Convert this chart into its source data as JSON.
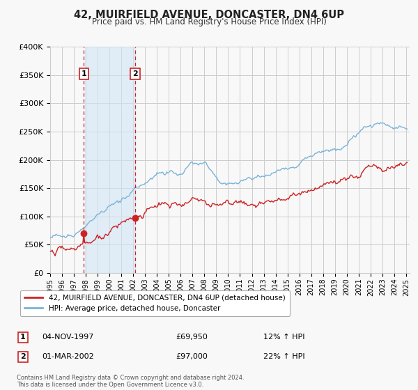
{
  "title": "42, MUIRFIELD AVENUE, DONCASTER, DN4 6UP",
  "subtitle": "Price paid vs. HM Land Registry's House Price Index (HPI)",
  "ylim": [
    0,
    400000
  ],
  "yticks": [
    0,
    50000,
    100000,
    150000,
    200000,
    250000,
    300000,
    350000,
    400000
  ],
  "ytick_labels": [
    "£0",
    "£50K",
    "£100K",
    "£150K",
    "£200K",
    "£250K",
    "£300K",
    "£350K",
    "£400K"
  ],
  "year_start": 1995,
  "year_end": 2025,
  "sale1_date": 1997.84,
  "sale1_price": 69950,
  "sale1_label": "1",
  "sale1_annotation": "04-NOV-1997",
  "sale1_amount": "£69,950",
  "sale1_hpi": "12% ↑ HPI",
  "sale2_date": 2002.17,
  "sale2_price": 97000,
  "sale2_label": "2",
  "sale2_annotation": "01-MAR-2002",
  "sale2_amount": "£97,000",
  "sale2_hpi": "22% ↑ HPI",
  "shade_color": "#d0e4f5",
  "shade_alpha": 0.6,
  "hpi_color": "#7ab3d8",
  "sale_color": "#cc2222",
  "vline_color": "#cc2222",
  "grid_color": "#cccccc",
  "background_color": "#f8f8f8",
  "legend_sale_label": "42, MUIRFIELD AVENUE, DONCASTER, DN4 6UP (detached house)",
  "legend_hpi_label": "HPI: Average price, detached house, Doncaster",
  "footer": "Contains HM Land Registry data © Crown copyright and database right 2024.\nThis data is licensed under the Open Government Licence v3.0."
}
